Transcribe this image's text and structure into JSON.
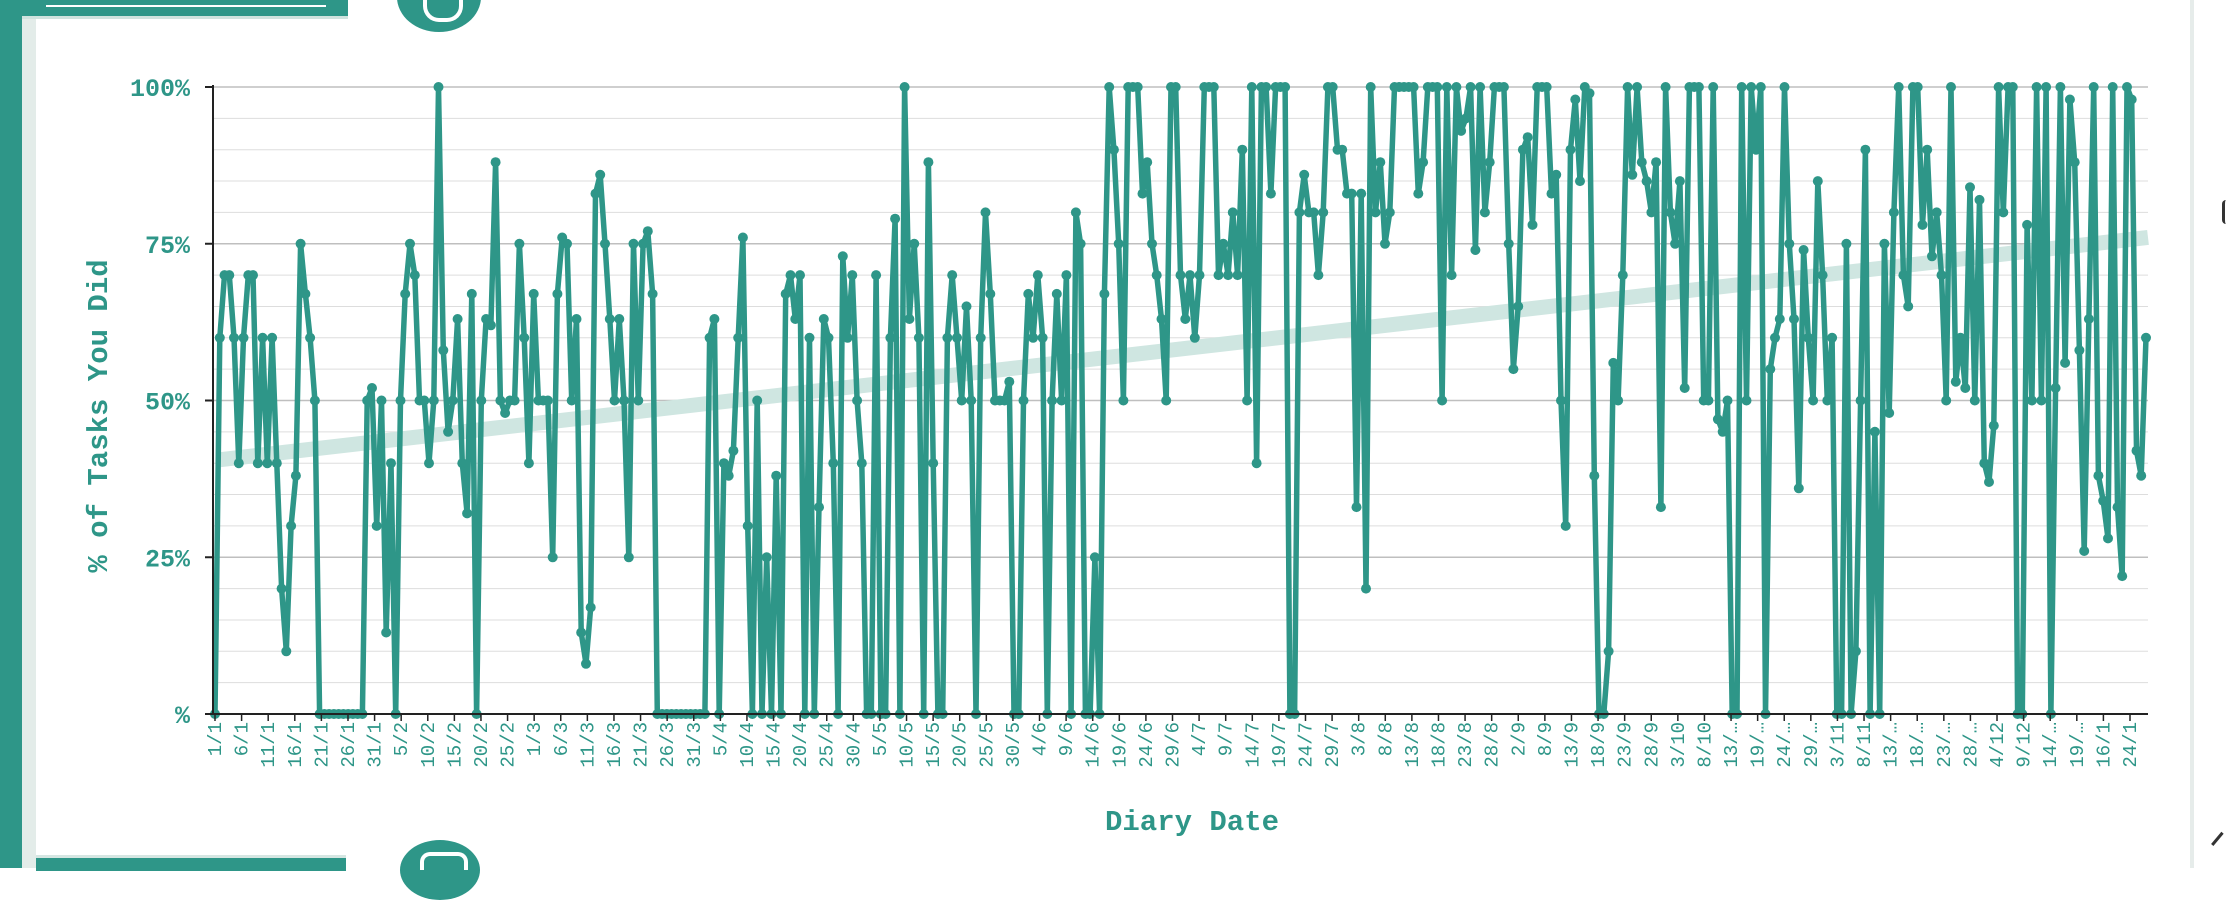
{
  "colors": {
    "accent": "#2e9688",
    "trend": "#cfe6e1",
    "grid": "#dddddd"
  },
  "icons": [
    "logo-icon",
    "logo-icon"
  ],
  "chart_data": {
    "type": "line",
    "xlabel": "Diary Date",
    "ylabel": "% of Tasks You Did",
    "ylim": [
      0,
      100
    ],
    "y_ticks": [
      {
        "value": 100,
        "label": "100%"
      },
      {
        "value": 75,
        "label": "75%"
      },
      {
        "value": 50,
        "label": "50%"
      },
      {
        "value": 25,
        "label": "25%"
      },
      {
        "value": 0,
        "label": "%"
      }
    ],
    "x_tick_labels": [
      "1/1",
      "6/1",
      "11/1",
      "16/1",
      "21/1",
      "26/1",
      "31/1",
      "5/2",
      "10/2",
      "15/2",
      "20/2",
      "25/2",
      "1/3",
      "6/3",
      "11/3",
      "16/3",
      "21/3",
      "26/3",
      "31/3",
      "5/4",
      "10/4",
      "15/4",
      "20/4",
      "25/4",
      "30/4",
      "5/5",
      "10/5",
      "15/5",
      "20/5",
      "25/5",
      "30/5",
      "4/6",
      "9/6",
      "14/6",
      "19/6",
      "24/6",
      "29/6",
      "4/7",
      "9/7",
      "14/7",
      "19/7",
      "24/7",
      "29/7",
      "3/8",
      "8/8",
      "13/8",
      "18/8",
      "23/8",
      "28/8",
      "2/9",
      "8/9",
      "13/9",
      "18/9",
      "23/9",
      "28/9",
      "3/10",
      "8/10",
      "13/…",
      "19/…",
      "24/…",
      "29/…",
      "3/11",
      "8/11",
      "13/…",
      "18/…",
      "23/…",
      "28/…",
      "4/12",
      "9/12",
      "14/…",
      "19/…",
      "16/1",
      "24/1"
    ],
    "grid": true,
    "grid_minor_step": 5,
    "series": [
      {
        "values": [
          0,
          60,
          70,
          70,
          60,
          40,
          60,
          70,
          70,
          40,
          60,
          40,
          60,
          40,
          20,
          10,
          30,
          38,
          75,
          67,
          60,
          50,
          0,
          0,
          0,
          0,
          0,
          0,
          0,
          0,
          0,
          0,
          50,
          52,
          30,
          50,
          13,
          40,
          0,
          50,
          67,
          75,
          70,
          50,
          50,
          40,
          50,
          100,
          58,
          45,
          50,
          63,
          40,
          32,
          67,
          0,
          50,
          63,
          62,
          88,
          50,
          48,
          50,
          50,
          75,
          60,
          40,
          67,
          50,
          50,
          50,
          25,
          67,
          76,
          75,
          50,
          63,
          13,
          8,
          17,
          83,
          86,
          75,
          63,
          50,
          63,
          50,
          25,
          75,
          50,
          75,
          77,
          67,
          0,
          0,
          0,
          0,
          0,
          0,
          0,
          0,
          0,
          0,
          0,
          60,
          63,
          0,
          40,
          38,
          42,
          60,
          76,
          30,
          0,
          50,
          0,
          25,
          0,
          38,
          0,
          67,
          70,
          63,
          70,
          0,
          60,
          0,
          33,
          63,
          60,
          40,
          0,
          73,
          60,
          70,
          50,
          40,
          0,
          0,
          70,
          0,
          0,
          60,
          79,
          0,
          100,
          63,
          75,
          60,
          0,
          88,
          40,
          0,
          0,
          60,
          70,
          60,
          50,
          65,
          50,
          0,
          60,
          80,
          67,
          50,
          50,
          50,
          53,
          0,
          0,
          50,
          67,
          60,
          70,
          60,
          0,
          50,
          67,
          50,
          70,
          0,
          80,
          75,
          0,
          0,
          25,
          0,
          67,
          100,
          90,
          75,
          50,
          100,
          100,
          100,
          83,
          88,
          75,
          70,
          63,
          50,
          100,
          100,
          70,
          63,
          70,
          60,
          70,
          100,
          100,
          100,
          70,
          75,
          70,
          80,
          70,
          90,
          50,
          100,
          40,
          100,
          100,
          83,
          100,
          100,
          100,
          0,
          0,
          80,
          86,
          80,
          80,
          70,
          80,
          100,
          100,
          90,
          90,
          83,
          83,
          33,
          83,
          20,
          100,
          80,
          88,
          75,
          80,
          100,
          100,
          100,
          100,
          100,
          83,
          88,
          100,
          100,
          100,
          50,
          100,
          70,
          100,
          93,
          95,
          100,
          74,
          100,
          80,
          88,
          100,
          100,
          100,
          75,
          55,
          65,
          90,
          92,
          78,
          100,
          100,
          100,
          83,
          86,
          50,
          30,
          90,
          98,
          85,
          100,
          99,
          38,
          0,
          0,
          10,
          56,
          50,
          70,
          100,
          86,
          100,
          88,
          85,
          80,
          88,
          33,
          100,
          80,
          75,
          85,
          52,
          100,
          100,
          100,
          50,
          50,
          100,
          47,
          45,
          50,
          0,
          0,
          100,
          50,
          100,
          90,
          100,
          0,
          55,
          60,
          63,
          100,
          75,
          63,
          36,
          74,
          60,
          50,
          85,
          70,
          50,
          60,
          0,
          0,
          75,
          0,
          10,
          50,
          90,
          0,
          45,
          0,
          75,
          48,
          80,
          100,
          70,
          65,
          100,
          100,
          78,
          90,
          73,
          80,
          70,
          50,
          100,
          53,
          60,
          52,
          84,
          50,
          82,
          40,
          37,
          46,
          100,
          80,
          100,
          100,
          0,
          0,
          78,
          50,
          100,
          50,
          100,
          0,
          52,
          100,
          56,
          98,
          88,
          58,
          26,
          63,
          100,
          38,
          34,
          28,
          100,
          33,
          22,
          100,
          98,
          42,
          38,
          60
        ]
      },
      {
        "name": "trend",
        "values": [
          40.5,
          76
        ]
      }
    ]
  }
}
